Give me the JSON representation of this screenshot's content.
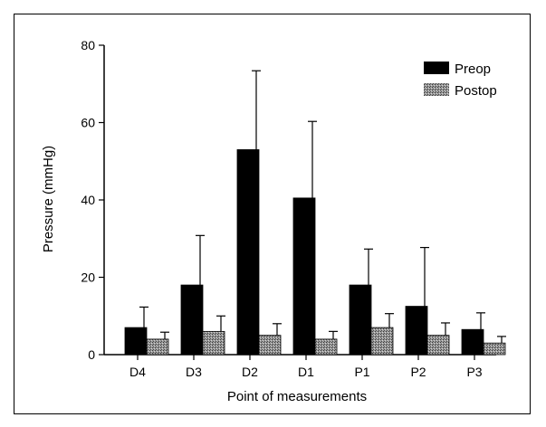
{
  "chart_data": {
    "type": "bar",
    "xlabel": "Point of measurements",
    "ylabel": "Pressure (mmHg)",
    "ylim": [
      0,
      80
    ],
    "yticks": [
      0,
      20,
      40,
      60,
      80
    ],
    "categories": [
      "D4",
      "D3",
      "D2",
      "D1",
      "P1",
      "P2",
      "P3"
    ],
    "series": [
      {
        "name": "Preop",
        "color": "#000000",
        "values": [
          7,
          18,
          53,
          40.5,
          18,
          12.5,
          6.5
        ],
        "errors": [
          5.3,
          12.8,
          20.4,
          19.8,
          9.3,
          15.2,
          4.3
        ]
      },
      {
        "name": "Postop",
        "color": "#808080",
        "values": [
          4,
          6,
          5,
          4,
          7,
          5,
          3
        ],
        "errors": [
          1.8,
          4.0,
          3.0,
          2.0,
          3.6,
          3.2,
          1.7
        ]
      }
    ],
    "legend_position": "top-right",
    "grid": false
  }
}
